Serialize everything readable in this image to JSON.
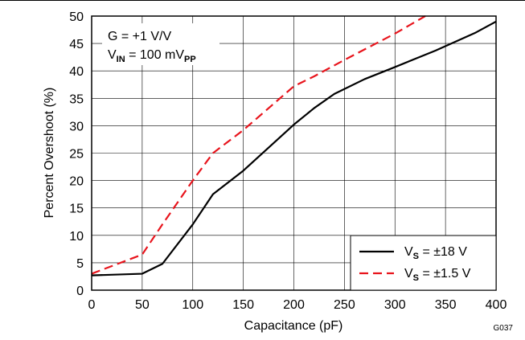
{
  "chart_data": {
    "type": "line",
    "xlabel": "Capacitance (pF)",
    "ylabel": "Percent Overshoot (%)",
    "xlim": [
      0,
      400
    ],
    "ylim": [
      0,
      50
    ],
    "x_ticks": [
      0,
      50,
      100,
      150,
      200,
      250,
      300,
      350,
      400
    ],
    "y_ticks": [
      0,
      5,
      10,
      15,
      20,
      25,
      30,
      35,
      40,
      45,
      50
    ],
    "grid": true,
    "legend_position": "bottom-right",
    "annotation": {
      "line1": "G = +1 V/V",
      "line2_prefix": "V",
      "line2_sub": "IN",
      "line2_mid": " = 100 mV",
      "line2_sub2": "PP"
    },
    "figure_id": "G037",
    "series": [
      {
        "legend_prefix": "V",
        "legend_sub": "S",
        "legend_value": " = ±18 V",
        "color": "#000000",
        "dash": "solid",
        "x": [
          0,
          50,
          70,
          100,
          120,
          150,
          200,
          220,
          240,
          270,
          300,
          340,
          380,
          400
        ],
        "y": [
          2.7,
          3.0,
          4.8,
          12.0,
          17.5,
          21.8,
          30.2,
          33.2,
          35.8,
          38.5,
          40.7,
          43.7,
          47.0,
          49.0
        ]
      },
      {
        "legend_prefix": "V",
        "legend_sub": "S",
        "legend_value": " = ±1.5 V",
        "color": "#e8141c",
        "dash": "dashed",
        "x": [
          0,
          50,
          70,
          100,
          120,
          150,
          200,
          220,
          250,
          300,
          330
        ],
        "y": [
          3.0,
          6.5,
          12.0,
          20.0,
          25.0,
          29.2,
          37.2,
          39.0,
          42.0,
          46.8,
          50.0
        ]
      }
    ]
  }
}
